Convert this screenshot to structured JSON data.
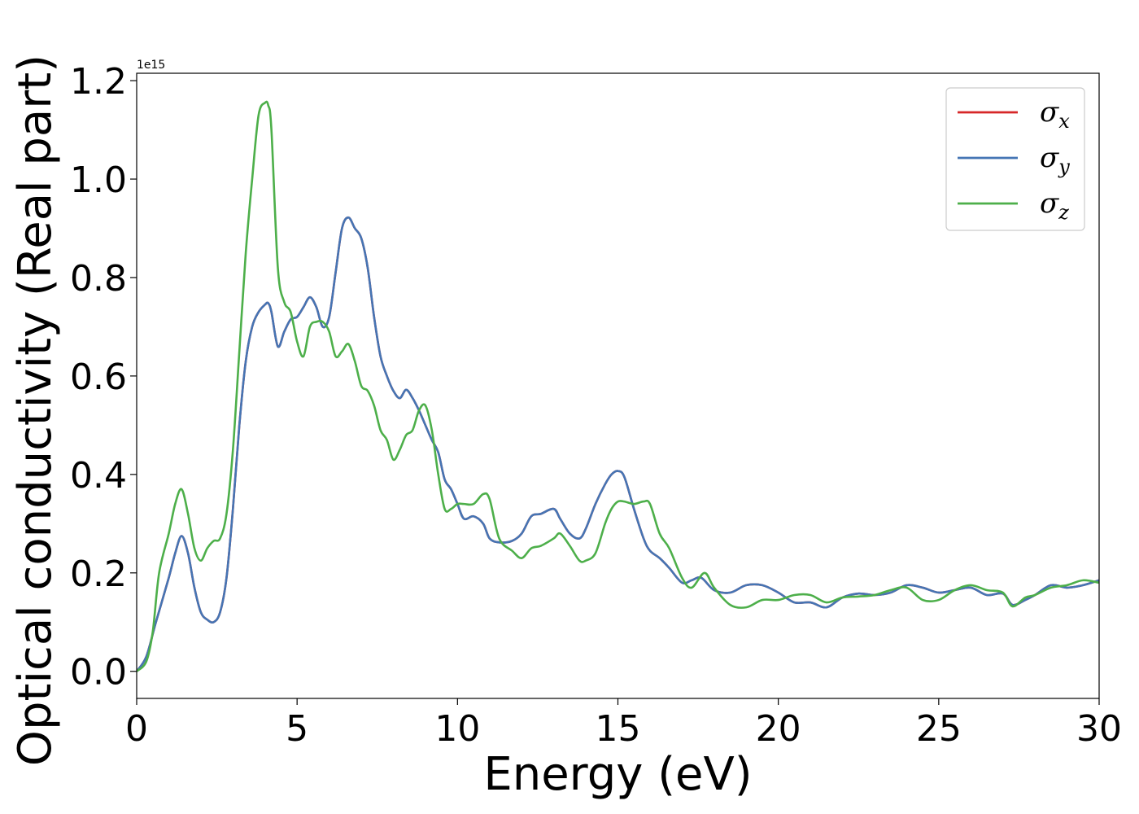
{
  "chart_data": {
    "type": "line",
    "xlabel": "Energy (eV)",
    "ylabel": "Optical conductivity (Real part)",
    "y_offset_label": "1e15",
    "xlim": [
      0,
      30
    ],
    "ylim": [
      -0.055,
      1.215
    ],
    "x_ticks": [
      0,
      5,
      10,
      15,
      20,
      25,
      30
    ],
    "x_tick_labels": [
      "0",
      "5",
      "10",
      "15",
      "20",
      "25",
      "30"
    ],
    "y_ticks": [
      0.0,
      0.2,
      0.4,
      0.6,
      0.8,
      1.0,
      1.2
    ],
    "y_tick_labels": [
      "0.0",
      "0.2",
      "0.4",
      "0.6",
      "0.8",
      "1.0",
      "1.2"
    ],
    "grid": false,
    "legend_position": "top-right",
    "series": [
      {
        "name": "σx",
        "symbol": "σ",
        "subscript": "x",
        "color": "#d62728",
        "x": [
          0,
          0.3,
          0.6,
          1.0,
          1.2,
          1.4,
          1.6,
          1.8,
          2.0,
          2.2,
          2.4,
          2.6,
          2.8,
          3.0,
          3.2,
          3.4,
          3.6,
          3.8,
          4.0,
          4.1,
          4.2,
          4.4,
          4.6,
          4.8,
          5.0,
          5.2,
          5.4,
          5.6,
          5.8,
          6.0,
          6.2,
          6.4,
          6.6,
          6.8,
          7.0,
          7.2,
          7.4,
          7.6,
          7.8,
          8.0,
          8.2,
          8.4,
          8.6,
          8.8,
          9.0,
          9.2,
          9.4,
          9.6,
          9.8,
          10.0,
          10.2,
          10.5,
          10.8,
          11.0,
          11.3,
          11.7,
          12.0,
          12.3,
          12.6,
          13.0,
          13.2,
          13.5,
          13.8,
          14.0,
          14.3,
          14.6,
          14.8,
          15.0,
          15.2,
          15.5,
          15.8,
          16.0,
          16.3,
          16.6,
          17.0,
          17.3,
          17.6,
          18.0,
          18.5,
          19.0,
          19.5,
          20.0,
          20.5,
          21.0,
          21.5,
          22.0,
          22.5,
          23.0,
          23.5,
          24.0,
          24.5,
          25.0,
          25.5,
          26.0,
          26.5,
          27.0,
          27.3,
          27.7,
          28.0,
          28.5,
          29.0,
          29.5,
          30.0
        ],
        "y": [
          0.0,
          0.03,
          0.1,
          0.19,
          0.24,
          0.275,
          0.24,
          0.17,
          0.12,
          0.105,
          0.1,
          0.12,
          0.19,
          0.33,
          0.5,
          0.63,
          0.7,
          0.73,
          0.745,
          0.748,
          0.73,
          0.66,
          0.69,
          0.715,
          0.72,
          0.74,
          0.76,
          0.74,
          0.7,
          0.72,
          0.81,
          0.9,
          0.922,
          0.9,
          0.88,
          0.82,
          0.72,
          0.64,
          0.6,
          0.57,
          0.555,
          0.572,
          0.555,
          0.53,
          0.5,
          0.47,
          0.445,
          0.39,
          0.37,
          0.34,
          0.31,
          0.315,
          0.3,
          0.27,
          0.262,
          0.265,
          0.28,
          0.315,
          0.32,
          0.33,
          0.31,
          0.28,
          0.27,
          0.29,
          0.34,
          0.38,
          0.4,
          0.407,
          0.395,
          0.33,
          0.27,
          0.245,
          0.23,
          0.21,
          0.18,
          0.185,
          0.19,
          0.165,
          0.16,
          0.175,
          0.175,
          0.16,
          0.14,
          0.14,
          0.13,
          0.15,
          0.158,
          0.155,
          0.16,
          0.175,
          0.17,
          0.16,
          0.165,
          0.17,
          0.155,
          0.158,
          0.135,
          0.145,
          0.155,
          0.175,
          0.17,
          0.175,
          0.185
        ]
      },
      {
        "name": "σy",
        "symbol": "σ",
        "subscript": "y",
        "color": "#4575b4",
        "x": [
          0,
          0.3,
          0.6,
          1.0,
          1.2,
          1.4,
          1.6,
          1.8,
          2.0,
          2.2,
          2.4,
          2.6,
          2.8,
          3.0,
          3.2,
          3.4,
          3.6,
          3.8,
          4.0,
          4.1,
          4.2,
          4.4,
          4.6,
          4.8,
          5.0,
          5.2,
          5.4,
          5.6,
          5.8,
          6.0,
          6.2,
          6.4,
          6.6,
          6.8,
          7.0,
          7.2,
          7.4,
          7.6,
          7.8,
          8.0,
          8.2,
          8.4,
          8.6,
          8.8,
          9.0,
          9.2,
          9.4,
          9.6,
          9.8,
          10.0,
          10.2,
          10.5,
          10.8,
          11.0,
          11.3,
          11.7,
          12.0,
          12.3,
          12.6,
          13.0,
          13.2,
          13.5,
          13.8,
          14.0,
          14.3,
          14.6,
          14.8,
          15.0,
          15.2,
          15.5,
          15.8,
          16.0,
          16.3,
          16.6,
          17.0,
          17.3,
          17.6,
          18.0,
          18.5,
          19.0,
          19.5,
          20.0,
          20.5,
          21.0,
          21.5,
          22.0,
          22.5,
          23.0,
          23.5,
          24.0,
          24.5,
          25.0,
          25.5,
          26.0,
          26.5,
          27.0,
          27.3,
          27.7,
          28.0,
          28.5,
          29.0,
          29.5,
          30.0
        ],
        "y": [
          0.0,
          0.03,
          0.1,
          0.19,
          0.24,
          0.275,
          0.24,
          0.17,
          0.12,
          0.105,
          0.1,
          0.12,
          0.19,
          0.33,
          0.5,
          0.63,
          0.7,
          0.73,
          0.745,
          0.748,
          0.73,
          0.66,
          0.69,
          0.715,
          0.72,
          0.74,
          0.76,
          0.74,
          0.7,
          0.72,
          0.81,
          0.9,
          0.922,
          0.9,
          0.88,
          0.82,
          0.72,
          0.64,
          0.6,
          0.57,
          0.555,
          0.572,
          0.555,
          0.53,
          0.5,
          0.47,
          0.445,
          0.39,
          0.37,
          0.34,
          0.31,
          0.315,
          0.3,
          0.27,
          0.262,
          0.265,
          0.28,
          0.315,
          0.32,
          0.33,
          0.31,
          0.28,
          0.27,
          0.29,
          0.34,
          0.38,
          0.4,
          0.407,
          0.395,
          0.33,
          0.27,
          0.245,
          0.23,
          0.21,
          0.18,
          0.185,
          0.19,
          0.165,
          0.16,
          0.175,
          0.175,
          0.16,
          0.14,
          0.14,
          0.13,
          0.15,
          0.158,
          0.155,
          0.16,
          0.175,
          0.17,
          0.16,
          0.165,
          0.17,
          0.155,
          0.158,
          0.135,
          0.145,
          0.155,
          0.175,
          0.17,
          0.175,
          0.185
        ]
      },
      {
        "name": "σz",
        "symbol": "σ",
        "subscript": "z",
        "color": "#4daf4a",
        "x": [
          0,
          0.3,
          0.5,
          0.7,
          1.0,
          1.2,
          1.4,
          1.6,
          1.8,
          2.0,
          2.2,
          2.4,
          2.6,
          2.8,
          3.0,
          3.2,
          3.4,
          3.6,
          3.8,
          4.0,
          4.1,
          4.2,
          4.4,
          4.6,
          4.8,
          5.0,
          5.2,
          5.4,
          5.6,
          5.8,
          6.0,
          6.2,
          6.4,
          6.6,
          6.8,
          7.0,
          7.2,
          7.4,
          7.6,
          7.8,
          8.0,
          8.2,
          8.4,
          8.6,
          8.8,
          9.0,
          9.2,
          9.4,
          9.6,
          9.8,
          10.0,
          10.2,
          10.5,
          10.8,
          11.0,
          11.3,
          11.7,
          12.0,
          12.3,
          12.6,
          13.0,
          13.2,
          13.5,
          13.8,
          14.0,
          14.3,
          14.6,
          14.8,
          15.0,
          15.2,
          15.5,
          15.8,
          16.0,
          16.3,
          16.6,
          17.0,
          17.3,
          17.7,
          18.0,
          18.5,
          19.0,
          19.5,
          20.0,
          20.5,
          21.0,
          21.5,
          22.0,
          22.5,
          23.0,
          23.5,
          24.0,
          24.5,
          25.0,
          25.5,
          26.0,
          26.5,
          27.0,
          27.3,
          27.7,
          28.0,
          28.5,
          29.0,
          29.5,
          30.0
        ],
        "y": [
          0.0,
          0.02,
          0.08,
          0.2,
          0.28,
          0.34,
          0.37,
          0.32,
          0.25,
          0.225,
          0.25,
          0.265,
          0.27,
          0.32,
          0.45,
          0.65,
          0.85,
          1.0,
          1.13,
          1.155,
          1.15,
          1.1,
          0.82,
          0.75,
          0.73,
          0.67,
          0.64,
          0.7,
          0.71,
          0.71,
          0.69,
          0.64,
          0.65,
          0.665,
          0.63,
          0.58,
          0.57,
          0.54,
          0.49,
          0.47,
          0.43,
          0.45,
          0.48,
          0.49,
          0.53,
          0.54,
          0.49,
          0.4,
          0.33,
          0.33,
          0.34,
          0.34,
          0.34,
          0.36,
          0.35,
          0.27,
          0.245,
          0.23,
          0.25,
          0.255,
          0.27,
          0.28,
          0.255,
          0.225,
          0.225,
          0.24,
          0.3,
          0.33,
          0.345,
          0.345,
          0.34,
          0.345,
          0.34,
          0.28,
          0.25,
          0.19,
          0.17,
          0.2,
          0.17,
          0.135,
          0.13,
          0.145,
          0.145,
          0.155,
          0.155,
          0.14,
          0.15,
          0.152,
          0.155,
          0.165,
          0.17,
          0.145,
          0.145,
          0.165,
          0.175,
          0.165,
          0.16,
          0.132,
          0.15,
          0.155,
          0.17,
          0.175,
          0.185,
          0.18
        ]
      }
    ]
  }
}
